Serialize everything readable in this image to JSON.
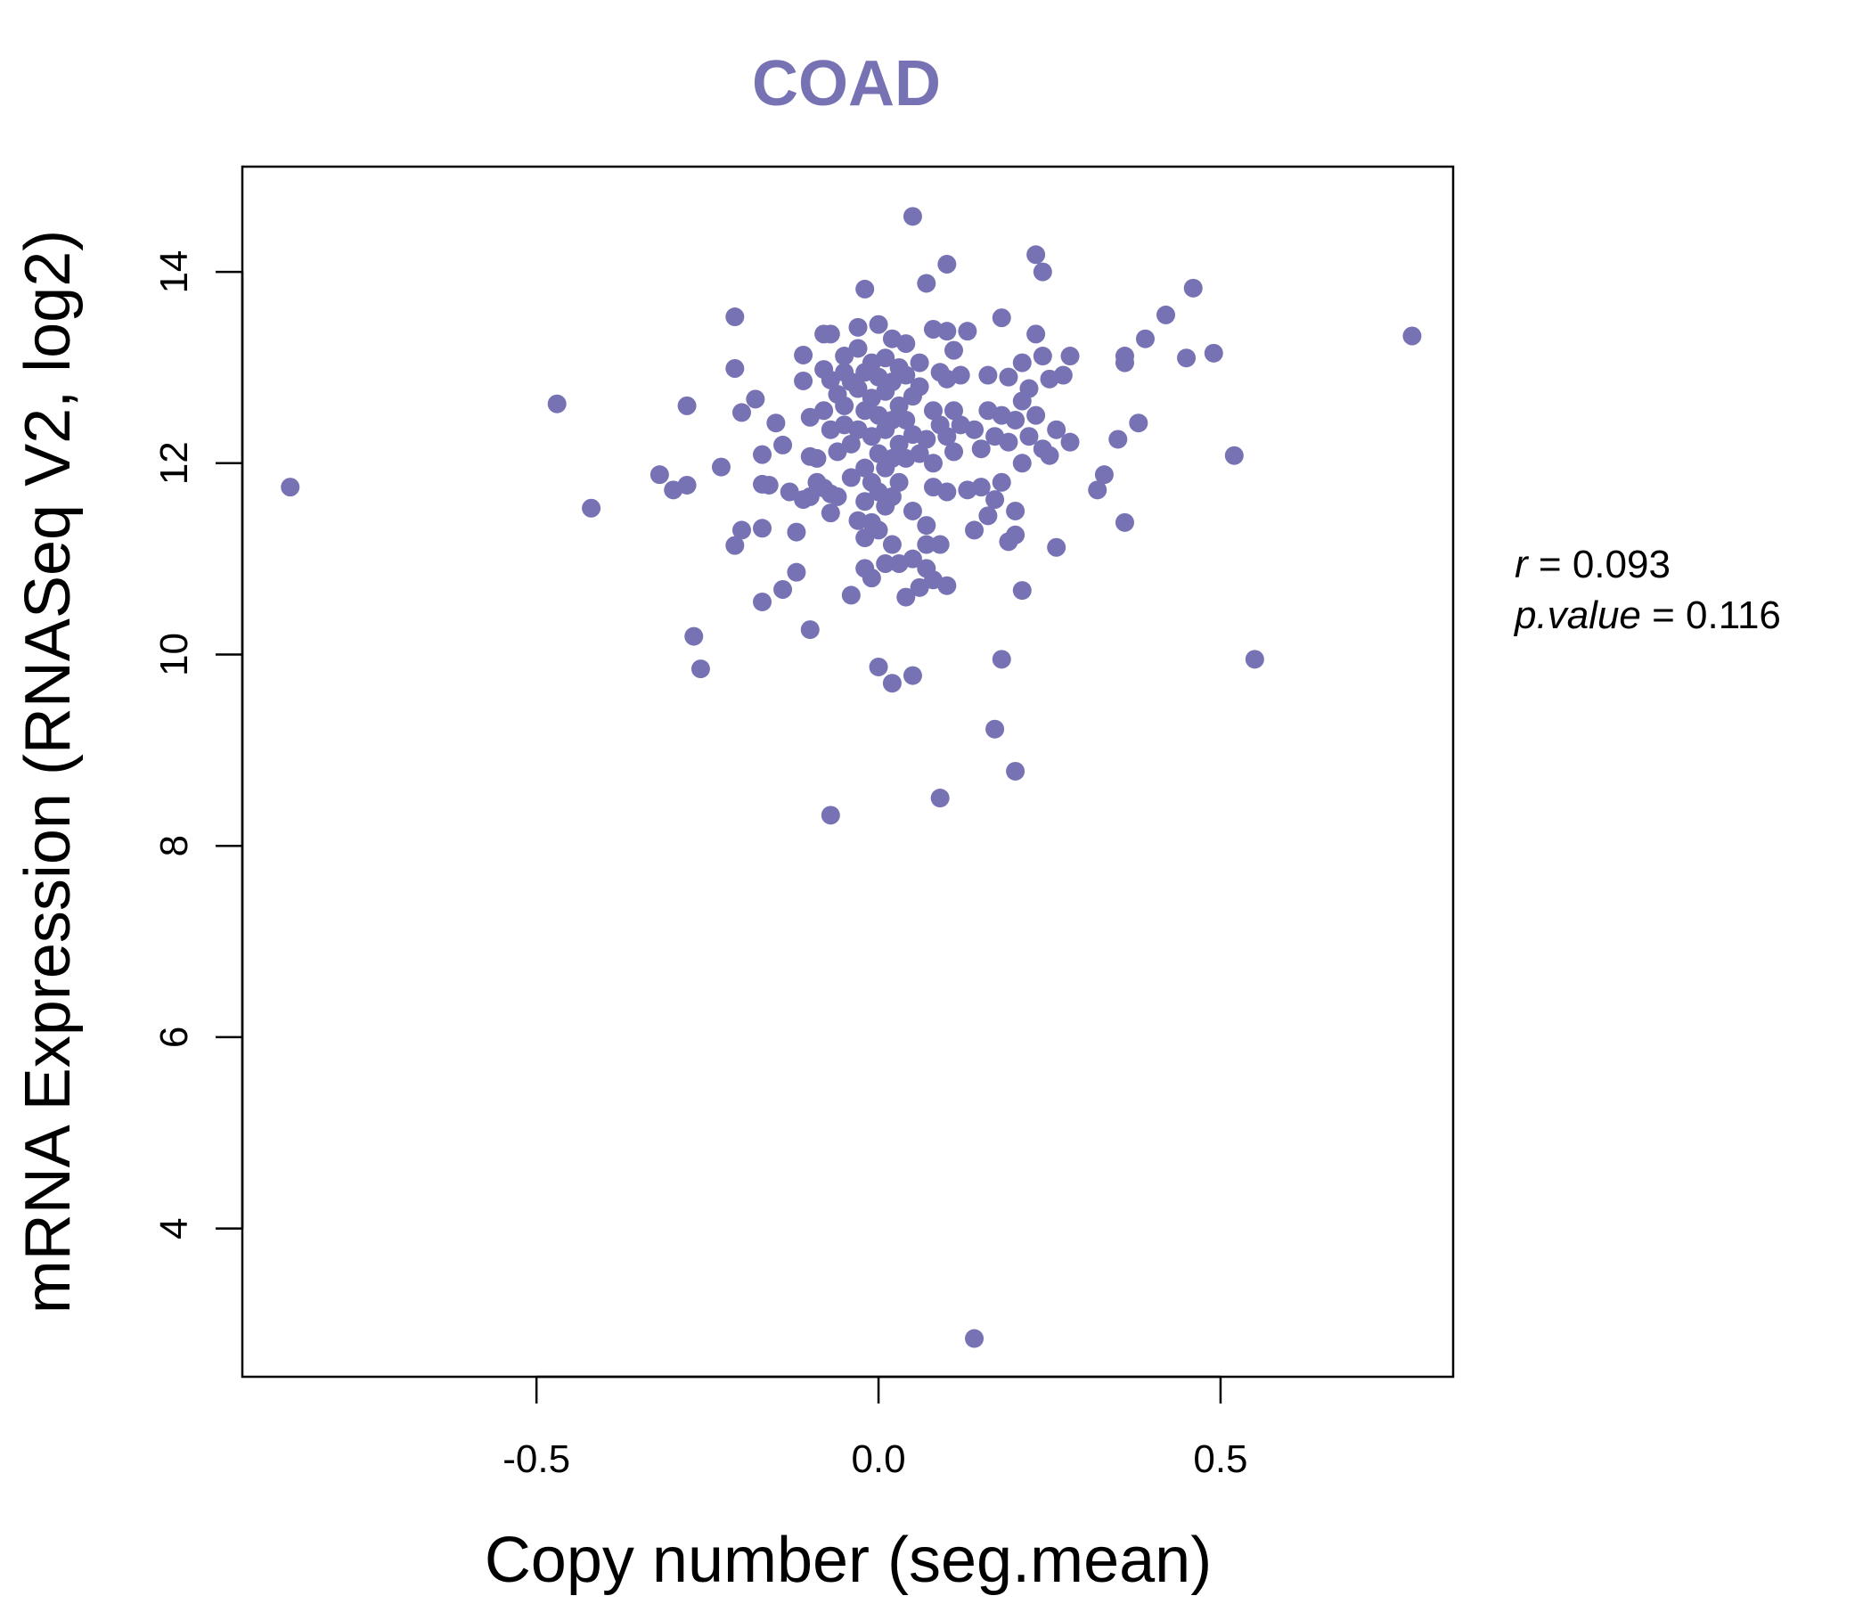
{
  "chart_data": {
    "type": "scatter",
    "title": "COAD",
    "xlabel": "Copy number (seg.mean)",
    "ylabel": "mRNA Expression (RNASeq V2, log2)",
    "xlim": [
      -0.93,
      0.84
    ],
    "ylim": [
      2.45,
      15.1
    ],
    "x_ticks": [
      -0.5,
      0.0,
      0.5
    ],
    "x_tick_labels": [
      "-0.5",
      "0.0",
      "0.5"
    ],
    "y_ticks": [
      4,
      6,
      8,
      10,
      12,
      14
    ],
    "y_tick_labels": [
      "4",
      "6",
      "8",
      "10",
      "12",
      "14"
    ],
    "grid": false,
    "color": "#7672B4",
    "stats": {
      "r_label": "r",
      "r_value": "0.093",
      "p_label": "p.value",
      "p_value": "0.116"
    },
    "points": [
      [
        -0.86,
        11.75
      ],
      [
        -0.47,
        12.62
      ],
      [
        -0.42,
        11.53
      ],
      [
        -0.32,
        11.88
      ],
      [
        -0.3,
        11.72
      ],
      [
        -0.28,
        11.77
      ],
      [
        -0.28,
        12.6
      ],
      [
        -0.27,
        10.19
      ],
      [
        -0.26,
        9.85
      ],
      [
        -0.23,
        11.96
      ],
      [
        -0.21,
        13.53
      ],
      [
        -0.21,
        12.99
      ],
      [
        -0.21,
        11.14
      ],
      [
        -0.2,
        11.3
      ],
      [
        -0.2,
        12.53
      ],
      [
        -0.18,
        12.67
      ],
      [
        -0.17,
        12.09
      ],
      [
        -0.17,
        11.32
      ],
      [
        -0.17,
        11.78
      ],
      [
        -0.17,
        10.55
      ],
      [
        -0.16,
        11.77
      ],
      [
        -0.15,
        12.42
      ],
      [
        -0.14,
        12.19
      ],
      [
        -0.14,
        10.68
      ],
      [
        -0.13,
        11.7
      ],
      [
        -0.12,
        10.86
      ],
      [
        -0.12,
        11.28
      ],
      [
        -0.11,
        13.13
      ],
      [
        -0.11,
        12.86
      ],
      [
        -0.11,
        11.62
      ],
      [
        -0.1,
        12.07
      ],
      [
        -0.1,
        10.26
      ],
      [
        -0.1,
        11.65
      ],
      [
        -0.1,
        12.48
      ],
      [
        -0.09,
        12.05
      ],
      [
        -0.09,
        11.8
      ],
      [
        -0.08,
        13.35
      ],
      [
        -0.08,
        12.98
      ],
      [
        -0.08,
        12.55
      ],
      [
        -0.08,
        11.74
      ],
      [
        -0.07,
        13.35
      ],
      [
        -0.07,
        12.87
      ],
      [
        -0.07,
        12.35
      ],
      [
        -0.07,
        11.68
      ],
      [
        -0.07,
        11.48
      ],
      [
        -0.07,
        8.32
      ],
      [
        -0.06,
        12.72
      ],
      [
        -0.06,
        12.12
      ],
      [
        -0.06,
        11.65
      ],
      [
        -0.05,
        12.95
      ],
      [
        -0.05,
        12.6
      ],
      [
        -0.05,
        12.4
      ],
      [
        -0.05,
        13.12
      ],
      [
        -0.04,
        12.85
      ],
      [
        -0.04,
        12.2
      ],
      [
        -0.04,
        11.85
      ],
      [
        -0.04,
        10.62
      ],
      [
        -0.03,
        13.2
      ],
      [
        -0.03,
        12.78
      ],
      [
        -0.03,
        12.35
      ],
      [
        -0.03,
        11.4
      ],
      [
        -0.03,
        13.42
      ],
      [
        -0.02,
        12.95
      ],
      [
        -0.02,
        12.55
      ],
      [
        -0.02,
        11.95
      ],
      [
        -0.02,
        11.6
      ],
      [
        -0.02,
        11.22
      ],
      [
        -0.02,
        10.9
      ],
      [
        -0.02,
        13.82
      ],
      [
        -0.01,
        13.05
      ],
      [
        -0.01,
        12.68
      ],
      [
        -0.01,
        12.28
      ],
      [
        -0.01,
        11.8
      ],
      [
        -0.01,
        11.38
      ],
      [
        -0.01,
        10.8
      ],
      [
        0.0,
        13.45
      ],
      [
        0.0,
        12.9
      ],
      [
        0.0,
        12.5
      ],
      [
        0.0,
        12.1
      ],
      [
        0.0,
        11.7
      ],
      [
        0.0,
        11.3
      ],
      [
        0.0,
        9.87
      ],
      [
        0.01,
        13.1
      ],
      [
        0.01,
        12.75
      ],
      [
        0.01,
        12.35
      ],
      [
        0.01,
        11.95
      ],
      [
        0.01,
        11.55
      ],
      [
        0.01,
        10.95
      ],
      [
        0.02,
        13.3
      ],
      [
        0.02,
        12.85
      ],
      [
        0.02,
        12.45
      ],
      [
        0.02,
        12.05
      ],
      [
        0.02,
        11.65
      ],
      [
        0.02,
        11.15
      ],
      [
        0.02,
        9.7
      ],
      [
        0.03,
        13.0
      ],
      [
        0.03,
        12.6
      ],
      [
        0.03,
        12.2
      ],
      [
        0.03,
        11.8
      ],
      [
        0.03,
        10.95
      ],
      [
        0.04,
        12.92
      ],
      [
        0.04,
        12.45
      ],
      [
        0.04,
        12.05
      ],
      [
        0.04,
        10.6
      ],
      [
        0.04,
        13.25
      ],
      [
        0.05,
        12.7
      ],
      [
        0.05,
        12.3
      ],
      [
        0.05,
        11.5
      ],
      [
        0.05,
        11.0
      ],
      [
        0.05,
        14.58
      ],
      [
        0.05,
        9.78
      ],
      [
        0.06,
        13.05
      ],
      [
        0.06,
        12.8
      ],
      [
        0.06,
        12.1
      ],
      [
        0.06,
        10.7
      ],
      [
        0.07,
        13.88
      ],
      [
        0.07,
        12.25
      ],
      [
        0.07,
        11.35
      ],
      [
        0.07,
        11.15
      ],
      [
        0.07,
        10.9
      ],
      [
        0.08,
        13.4
      ],
      [
        0.08,
        12.55
      ],
      [
        0.08,
        12.0
      ],
      [
        0.08,
        11.75
      ],
      [
        0.08,
        10.78
      ],
      [
        0.09,
        12.95
      ],
      [
        0.09,
        12.4
      ],
      [
        0.09,
        11.15
      ],
      [
        0.09,
        8.5
      ],
      [
        0.1,
        14.08
      ],
      [
        0.1,
        13.38
      ],
      [
        0.1,
        12.88
      ],
      [
        0.1,
        12.28
      ],
      [
        0.1,
        11.7
      ],
      [
        0.1,
        10.72
      ],
      [
        0.11,
        13.18
      ],
      [
        0.11,
        12.55
      ],
      [
        0.11,
        12.12
      ],
      [
        0.12,
        12.92
      ],
      [
        0.12,
        12.4
      ],
      [
        0.13,
        13.38
      ],
      [
        0.13,
        11.72
      ],
      [
        0.14,
        12.35
      ],
      [
        0.14,
        11.3
      ],
      [
        0.14,
        2.85
      ],
      [
        0.15,
        12.15
      ],
      [
        0.15,
        11.75
      ],
      [
        0.16,
        12.92
      ],
      [
        0.16,
        12.55
      ],
      [
        0.16,
        11.45
      ],
      [
        0.17,
        12.28
      ],
      [
        0.17,
        11.62
      ],
      [
        0.17,
        9.22
      ],
      [
        0.18,
        13.52
      ],
      [
        0.18,
        12.5
      ],
      [
        0.18,
        11.8
      ],
      [
        0.18,
        9.95
      ],
      [
        0.19,
        12.9
      ],
      [
        0.19,
        12.22
      ],
      [
        0.19,
        11.18
      ],
      [
        0.2,
        12.45
      ],
      [
        0.2,
        11.5
      ],
      [
        0.2,
        11.25
      ],
      [
        0.2,
        8.78
      ],
      [
        0.21,
        13.05
      ],
      [
        0.21,
        12.65
      ],
      [
        0.21,
        12.0
      ],
      [
        0.21,
        10.67
      ],
      [
        0.22,
        12.78
      ],
      [
        0.22,
        12.28
      ],
      [
        0.23,
        14.18
      ],
      [
        0.23,
        13.35
      ],
      [
        0.23,
        12.5
      ],
      [
        0.24,
        14.0
      ],
      [
        0.24,
        13.12
      ],
      [
        0.24,
        12.15
      ],
      [
        0.25,
        12.88
      ],
      [
        0.25,
        12.08
      ],
      [
        0.26,
        12.35
      ],
      [
        0.26,
        11.12
      ],
      [
        0.27,
        12.92
      ],
      [
        0.28,
        13.12
      ],
      [
        0.28,
        12.22
      ],
      [
        0.32,
        11.72
      ],
      [
        0.33,
        11.88
      ],
      [
        0.35,
        12.25
      ],
      [
        0.36,
        13.12
      ],
      [
        0.36,
        13.05
      ],
      [
        0.36,
        11.38
      ],
      [
        0.38,
        12.42
      ],
      [
        0.39,
        13.3
      ],
      [
        0.42,
        13.55
      ],
      [
        0.45,
        13.1
      ],
      [
        0.46,
        13.83
      ],
      [
        0.49,
        13.15
      ],
      [
        0.52,
        12.08
      ],
      [
        0.55,
        9.95
      ],
      [
        0.78,
        13.33
      ]
    ]
  }
}
